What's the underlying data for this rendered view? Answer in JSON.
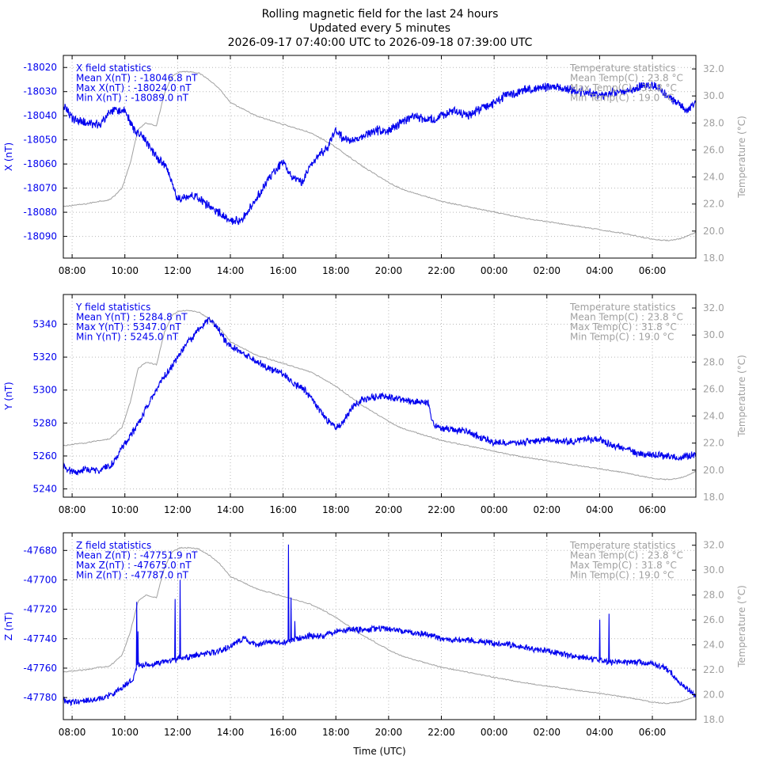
{
  "title": {
    "line1": "Rolling magnetic field for the last 24 hours",
    "line2": "Updated every 5 minutes",
    "line3": "2026-09-17 07:40:00 UTC to 2026-09-18 07:39:00 UTC"
  },
  "chart_data": [
    {
      "type": "line",
      "id": "x",
      "ylabel": "X (nT)",
      "y2label": "Temperature (°C)",
      "xlabel": "",
      "xlim": [
        7.667,
        31.65
      ],
      "xticks": [
        8,
        10,
        12,
        14,
        16,
        18,
        20,
        22,
        24,
        26,
        28,
        30
      ],
      "xtick_labels": [
        "08:00",
        "10:00",
        "12:00",
        "14:00",
        "16:00",
        "18:00",
        "20:00",
        "22:00",
        "00:00",
        "02:00",
        "04:00",
        "06:00"
      ],
      "ylim": [
        -18099,
        -18015
      ],
      "yticks": [
        -18090,
        -18080,
        -18070,
        -18060,
        -18050,
        -18040,
        -18030,
        -18020
      ],
      "ytick_labels": [
        "-18090",
        "-18080",
        "-18070",
        "-18060",
        "-18050",
        "-18040",
        "-18030",
        "-18020"
      ],
      "y2lim": [
        18,
        33
      ],
      "y2ticks": [
        18,
        20,
        22,
        24,
        26,
        28,
        30,
        32
      ],
      "y2tick_labels": [
        "18.0",
        "20.0",
        "22.0",
        "24.0",
        "26.0",
        "28.0",
        "30.0",
        "32.0"
      ],
      "grid": true,
      "stats_left": [
        "X field statistics",
        "Mean X(nT) : -18046.8 nT",
        "Max X(nT) : -18024.0 nT",
        "Min X(nT) : -18089.0 nT"
      ],
      "stats_right": [
        "Temperature statistics",
        "Mean Temp(C) : 23.8 °C",
        "Max Temp(C) : 31.8 °C",
        "Min Temp(C) : 19.0 °C"
      ],
      "field": {
        "name": "X (nT)",
        "color": "#0000ee",
        "x": [
          7.67,
          8.0,
          8.5,
          9.0,
          9.5,
          10.0,
          10.3,
          10.6,
          10.9,
          11.2,
          11.6,
          12.0,
          12.3,
          12.6,
          13.0,
          13.5,
          14.0,
          14.3,
          14.6,
          15.0,
          15.3,
          15.6,
          16.0,
          16.3,
          16.7,
          17.0,
          17.3,
          17.7,
          18.0,
          18.3,
          18.7,
          19.0,
          19.5,
          20.0,
          20.5,
          21.0,
          21.5,
          22.0,
          22.5,
          23.0,
          23.5,
          24.0,
          24.5,
          25.0,
          25.5,
          26.0,
          26.5,
          27.0,
          27.5,
          28.0,
          28.5,
          29.0,
          29.5,
          30.0,
          30.5,
          31.0,
          31.3,
          31.65
        ],
        "y": [
          -18036,
          -18041,
          -18043,
          -18044,
          -18038,
          -18038,
          -18045,
          -18048,
          -18052,
          -18057,
          -18062,
          -18075,
          -18074,
          -18073,
          -18076,
          -18080,
          -18083,
          -18084,
          -18081,
          -18074,
          -18069,
          -18064,
          -18059,
          -18065,
          -18068,
          -18061,
          -18057,
          -18053,
          -18046,
          -18050,
          -18050,
          -18049,
          -18046,
          -18046,
          -18043,
          -18040,
          -18042,
          -18040,
          -18038,
          -18040,
          -18037,
          -18035,
          -18031,
          -18030,
          -18029,
          -18028,
          -18028,
          -18030,
          -18030,
          -18032,
          -18030,
          -18030,
          -18028,
          -18027,
          -18031,
          -18035,
          -18038,
          -18034
        ],
        "noise": 1.6
      },
      "temp": {
        "name": "Temperature (°C)",
        "color": "#a0a0a0",
        "x": [
          7.67,
          8.0,
          8.5,
          9.0,
          9.4,
          9.6,
          9.9,
          10.2,
          10.5,
          10.8,
          11.2,
          11.5,
          11.8,
          12.1,
          12.5,
          12.8,
          13.2,
          13.6,
          14.0,
          14.5,
          15.0,
          15.5,
          16.0,
          16.5,
          17.0,
          17.5,
          18.0,
          18.5,
          19.0,
          19.5,
          20.0,
          20.5,
          21.0,
          21.5,
          22.0,
          23.0,
          24.0,
          25.0,
          26.0,
          27.0,
          28.0,
          29.0,
          29.5,
          30.0,
          30.5,
          31.0,
          31.3,
          31.65
        ],
        "y": [
          21.8,
          21.9,
          22.0,
          22.2,
          22.3,
          22.6,
          23.2,
          25.0,
          27.5,
          28.0,
          27.8,
          30.2,
          31.5,
          31.8,
          31.8,
          31.7,
          31.2,
          30.5,
          29.5,
          29.0,
          28.5,
          28.2,
          27.9,
          27.6,
          27.3,
          26.8,
          26.2,
          25.5,
          24.8,
          24.2,
          23.6,
          23.1,
          22.8,
          22.5,
          22.2,
          21.8,
          21.4,
          21.0,
          20.7,
          20.4,
          20.1,
          19.8,
          19.6,
          19.4,
          19.3,
          19.4,
          19.6,
          19.9
        ],
        "noise": 0.04
      }
    },
    {
      "type": "line",
      "id": "y",
      "ylabel": "Y (nT)",
      "y2label": "Temperature (°C)",
      "xlabel": "",
      "xlim": [
        7.667,
        31.65
      ],
      "xticks": [
        8,
        10,
        12,
        14,
        16,
        18,
        20,
        22,
        24,
        26,
        28,
        30
      ],
      "xtick_labels": [
        "08:00",
        "10:00",
        "12:00",
        "14:00",
        "16:00",
        "18:00",
        "20:00",
        "22:00",
        "00:00",
        "02:00",
        "04:00",
        "06:00"
      ],
      "ylim": [
        5235,
        5358
      ],
      "yticks": [
        5240,
        5260,
        5280,
        5300,
        5320,
        5340
      ],
      "ytick_labels": [
        "5240",
        "5260",
        "5280",
        "5300",
        "5320",
        "5340"
      ],
      "y2lim": [
        18,
        33
      ],
      "y2ticks": [
        18,
        20,
        22,
        24,
        26,
        28,
        30,
        32
      ],
      "y2tick_labels": [
        "18.0",
        "20.0",
        "22.0",
        "24.0",
        "26.0",
        "28.0",
        "30.0",
        "32.0"
      ],
      "grid": true,
      "stats_left": [
        "Y field statistics",
        "Mean Y(nT) : 5284.8 nT",
        "Max Y(nT) : 5347.0 nT",
        "Min Y(nT) : 5245.0 nT"
      ],
      "stats_right": [
        "Temperature statistics",
        "Mean Temp(C) : 23.8 °C",
        "Max Temp(C) : 31.8 °C",
        "Min Temp(C) : 19.0 °C"
      ],
      "field": {
        "name": "Y (nT)",
        "color": "#0000ee",
        "x": [
          7.67,
          8.0,
          8.5,
          9.0,
          9.5,
          9.8,
          10.2,
          10.6,
          11.0,
          11.4,
          11.8,
          12.2,
          12.6,
          13.0,
          13.2,
          13.5,
          13.8,
          14.1,
          14.5,
          15.0,
          15.5,
          16.0,
          16.4,
          16.8,
          17.2,
          17.6,
          18.0,
          18.3,
          18.6,
          19.0,
          19.5,
          20.0,
          20.5,
          21.0,
          21.5,
          21.7,
          22.0,
          22.5,
          23.0,
          23.5,
          24.0,
          24.5,
          25.0,
          25.5,
          26.0,
          26.5,
          27.0,
          27.5,
          28.0,
          28.5,
          29.0,
          29.5,
          30.0,
          30.5,
          31.0,
          31.3,
          31.65
        ],
        "y": [
          5254,
          5250,
          5252,
          5251,
          5255,
          5262,
          5272,
          5282,
          5295,
          5306,
          5315,
          5325,
          5333,
          5340,
          5343,
          5338,
          5330,
          5326,
          5322,
          5317,
          5313,
          5310,
          5304,
          5300,
          5292,
          5283,
          5277,
          5281,
          5289,
          5294,
          5296,
          5296,
          5294,
          5293,
          5292,
          5279,
          5277,
          5276,
          5275,
          5271,
          5268,
          5268,
          5268,
          5269,
          5270,
          5269,
          5269,
          5270,
          5270,
          5266,
          5265,
          5261,
          5261,
          5260,
          5259,
          5260,
          5261
        ],
        "noise": 1.8
      },
      "temp": {
        "name": "Temperature (°C)",
        "color": "#a0a0a0",
        "x": [
          7.67,
          8.0,
          8.5,
          9.0,
          9.4,
          9.6,
          9.9,
          10.2,
          10.5,
          10.8,
          11.2,
          11.5,
          11.8,
          12.1,
          12.5,
          12.8,
          13.2,
          13.6,
          14.0,
          14.5,
          15.0,
          15.5,
          16.0,
          16.5,
          17.0,
          17.5,
          18.0,
          18.5,
          19.0,
          19.5,
          20.0,
          20.5,
          21.0,
          21.5,
          22.0,
          23.0,
          24.0,
          25.0,
          26.0,
          27.0,
          28.0,
          29.0,
          29.5,
          30.0,
          30.5,
          31.0,
          31.3,
          31.65
        ],
        "y": [
          21.8,
          21.9,
          22.0,
          22.2,
          22.3,
          22.6,
          23.2,
          25.0,
          27.5,
          28.0,
          27.8,
          30.2,
          31.5,
          31.8,
          31.8,
          31.7,
          31.2,
          30.5,
          29.5,
          29.0,
          28.5,
          28.2,
          27.9,
          27.6,
          27.3,
          26.8,
          26.2,
          25.5,
          24.8,
          24.2,
          23.6,
          23.1,
          22.8,
          22.5,
          22.2,
          21.8,
          21.4,
          21.0,
          20.7,
          20.4,
          20.1,
          19.8,
          19.6,
          19.4,
          19.3,
          19.4,
          19.6,
          19.9
        ],
        "noise": 0.04
      }
    },
    {
      "type": "line",
      "id": "z",
      "ylabel": "Z (nT)",
      "y2label": "Temperature (°C)",
      "xlabel": "Time (UTC)",
      "xlim": [
        7.667,
        31.65
      ],
      "xticks": [
        8,
        10,
        12,
        14,
        16,
        18,
        20,
        22,
        24,
        26,
        28,
        30
      ],
      "xtick_labels": [
        "08:00",
        "10:00",
        "12:00",
        "14:00",
        "16:00",
        "18:00",
        "20:00",
        "22:00",
        "00:00",
        "02:00",
        "04:00",
        "06:00"
      ],
      "ylim": [
        -47795,
        -47668
      ],
      "yticks": [
        -47780,
        -47760,
        -47740,
        -47720,
        -47700,
        -47680
      ],
      "ytick_labels": [
        "-47780",
        "-47760",
        "-47740",
        "-47720",
        "-47700",
        "-47680"
      ],
      "y2lim": [
        18,
        33
      ],
      "y2ticks": [
        18,
        20,
        22,
        24,
        26,
        28,
        30,
        32
      ],
      "y2tick_labels": [
        "18.0",
        "20.0",
        "22.0",
        "24.0",
        "26.0",
        "28.0",
        "30.0",
        "32.0"
      ],
      "grid": true,
      "stats_left": [
        "Z field statistics",
        "Mean Z(nT) : -47751.9 nT",
        "Max Z(nT) : -47675.0 nT",
        "Min Z(nT) : -47787.0 nT"
      ],
      "stats_right": [
        "Temperature statistics",
        "Mean Temp(C) : 23.8 °C",
        "Max Temp(C) : 31.8 °C",
        "Min Temp(C) : 19.0 °C"
      ],
      "field": {
        "name": "Z (nT)",
        "color": "#0000ee",
        "x": [
          7.67,
          8.0,
          8.5,
          9.0,
          9.5,
          10.0,
          10.3,
          10.5,
          11.0,
          11.5,
          12.0,
          12.5,
          13.0,
          13.5,
          14.0,
          14.5,
          15.0,
          15.5,
          16.0,
          16.5,
          17.0,
          17.5,
          18.0,
          18.5,
          19.0,
          19.5,
          20.0,
          20.5,
          21.0,
          21.5,
          22.0,
          22.5,
          23.0,
          23.5,
          24.0,
          24.5,
          25.0,
          25.5,
          26.0,
          26.5,
          27.0,
          27.5,
          28.0,
          28.5,
          29.0,
          29.5,
          30.0,
          30.5,
          30.8,
          31.0,
          31.3,
          31.65
        ],
        "y": [
          -47782,
          -47783,
          -47782,
          -47781,
          -47778,
          -47772,
          -47768,
          -47758,
          -47758,
          -47756,
          -47754,
          -47752,
          -47750,
          -47749,
          -47745,
          -47740,
          -47744,
          -47742,
          -47743,
          -47740,
          -47738,
          -47738,
          -47735,
          -47734,
          -47734,
          -47733,
          -47733,
          -47735,
          -47736,
          -47737,
          -47740,
          -47741,
          -47741,
          -47742,
          -47743,
          -47744,
          -47745,
          -47747,
          -47748,
          -47750,
          -47752,
          -47753,
          -47755,
          -47756,
          -47756,
          -47756,
          -47757,
          -47760,
          -47765,
          -47770,
          -47774,
          -47778
        ],
        "noise": 1.7,
        "spikes": [
          {
            "x": 10.45,
            "y": -47715
          },
          {
            "x": 10.5,
            "y": -47735
          },
          {
            "x": 11.9,
            "y": -47713
          },
          {
            "x": 12.1,
            "y": -47700
          },
          {
            "x": 16.2,
            "y": -47676
          },
          {
            "x": 16.3,
            "y": -47712
          },
          {
            "x": 16.45,
            "y": -47728
          },
          {
            "x": 28.0,
            "y": -47727
          },
          {
            "x": 28.35,
            "y": -47723
          }
        ]
      },
      "temp": {
        "name": "Temperature (°C)",
        "color": "#a0a0a0",
        "x": [
          7.67,
          8.0,
          8.5,
          9.0,
          9.4,
          9.6,
          9.9,
          10.2,
          10.5,
          10.8,
          11.2,
          11.5,
          11.8,
          12.1,
          12.5,
          12.8,
          13.2,
          13.6,
          14.0,
          14.5,
          15.0,
          15.5,
          16.0,
          16.5,
          17.0,
          17.5,
          18.0,
          18.5,
          19.0,
          19.5,
          20.0,
          20.5,
          21.0,
          21.5,
          22.0,
          23.0,
          24.0,
          25.0,
          26.0,
          27.0,
          28.0,
          29.0,
          29.5,
          30.0,
          30.5,
          31.0,
          31.3,
          31.65
        ],
        "y": [
          21.8,
          21.9,
          22.0,
          22.2,
          22.3,
          22.6,
          23.2,
          25.0,
          27.5,
          28.0,
          27.8,
          30.2,
          31.5,
          31.8,
          31.8,
          31.7,
          31.2,
          30.5,
          29.5,
          29.0,
          28.5,
          28.2,
          27.9,
          27.6,
          27.3,
          26.8,
          26.2,
          25.5,
          24.8,
          24.2,
          23.6,
          23.1,
          22.8,
          22.5,
          22.2,
          21.8,
          21.4,
          21.0,
          20.7,
          20.4,
          20.1,
          19.8,
          19.6,
          19.4,
          19.3,
          19.4,
          19.6,
          19.9
        ],
        "noise": 0.04
      }
    }
  ]
}
